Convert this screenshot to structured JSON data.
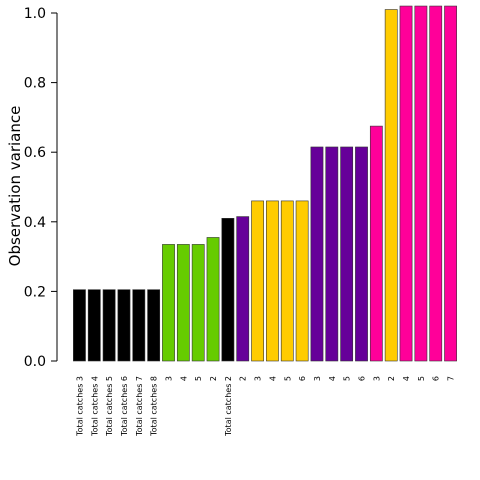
{
  "chart_data": {
    "type": "bar",
    "ylabel": "Observation variance",
    "ylim": [
      0,
      1.0
    ],
    "yticks": [
      "0.0",
      "0.2",
      "0.4",
      "0.6",
      "0.8",
      "1.0"
    ],
    "grid": false,
    "categories": [
      "Total catches 3",
      "Total catches 4",
      "Total catches 5",
      "Total catches 6",
      "Total catches 7",
      "Total catches 8",
      "3",
      "4",
      "5",
      "2",
      "Total catches 2",
      "2",
      "3",
      "4",
      "5",
      "6",
      "3",
      "4",
      "5",
      "6",
      "3",
      "2",
      "4",
      "5",
      "6",
      "7"
    ],
    "values": [
      0.205,
      0.205,
      0.205,
      0.205,
      0.205,
      0.205,
      0.335,
      0.335,
      0.335,
      0.355,
      0.41,
      0.415,
      0.46,
      0.46,
      0.46,
      0.46,
      0.615,
      0.615,
      0.615,
      0.615,
      0.675,
      1.01,
      1.02,
      1.02,
      1.02,
      1.02
    ],
    "colors": [
      "#000000",
      "#000000",
      "#000000",
      "#000000",
      "#000000",
      "#000000",
      "#66cc00",
      "#66cc00",
      "#66cc00",
      "#66cc00",
      "#000000",
      "#660099",
      "#ffcc00",
      "#ffcc00",
      "#ffcc00",
      "#ffcc00",
      "#660099",
      "#660099",
      "#660099",
      "#660099",
      "#ff0099",
      "#ffcc00",
      "#ff0099",
      "#ff0099",
      "#ff0099",
      "#ff0099"
    ]
  }
}
